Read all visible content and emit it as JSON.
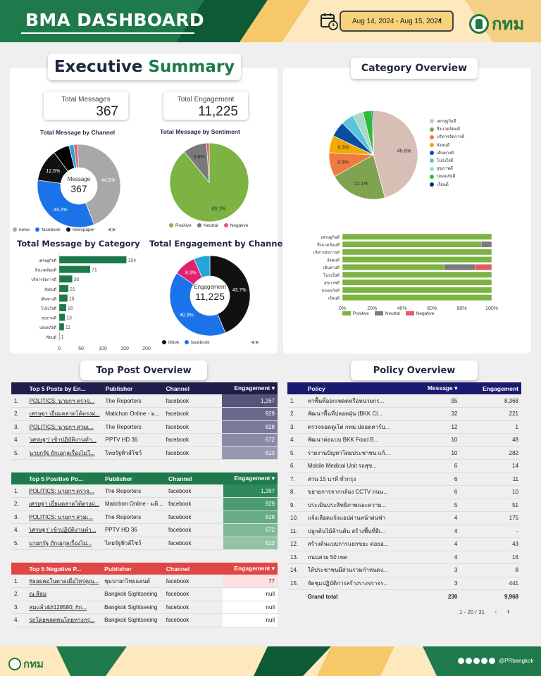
{
  "header": {
    "title": "BMA DASHBOARD",
    "date_range": "Aug 14, 2024 - Aug 15, 2024",
    "logo_text": "กทม"
  },
  "exec": {
    "title_a": "Executive",
    "title_b": "Summary",
    "total_messages_label": "Total Messages",
    "total_messages": "367",
    "total_engagement_label": "Total Engagement",
    "total_engagement": "11,225"
  },
  "charts": {
    "channel": {
      "title": "Total Message by Channel",
      "center_label": "Message",
      "center_value": "367",
      "slices": [
        {
          "name": "news",
          "value": 44.5,
          "label": "44.5%",
          "color": "#a8a8a8"
        },
        {
          "name": "facebook",
          "value": 33.2,
          "label": "33.2%",
          "color": "#1a73e8"
        },
        {
          "name": "newspaper",
          "value": 12.6,
          "label": "12.6%",
          "color": "#111111"
        },
        {
          "name": "",
          "value": 6.3,
          "label": "",
          "color": "#000000"
        },
        {
          "name": "",
          "value": 1.9,
          "label": "",
          "color": "#26a5d9"
        },
        {
          "name": "",
          "value": 1.5,
          "label": "",
          "color": "#e75a7c"
        }
      ],
      "legend": [
        "news",
        "facebook",
        "newspaper"
      ]
    },
    "sentiment": {
      "title": "Total Message by Sentiment",
      "slices": [
        {
          "name": "Positive",
          "value": 89.1,
          "label": "89.1%",
          "color": "#7cb342"
        },
        {
          "name": "Neutral",
          "value": 9.8,
          "label": "9.8%",
          "color": "#7a7a7a"
        },
        {
          "name": "Negative",
          "value": 1.1,
          "label": "",
          "color": "#e45b64"
        }
      ],
      "legend": [
        "Positive",
        "Neutral",
        "Negative"
      ]
    },
    "category_bar": {
      "title": "Total Message by Category",
      "categories": [
        "เศรษฐกิจดี",
        "สิ่งแวดล้อมดี",
        "บริหารจัดการดี",
        "สังคมดี",
        "เดินทางดี",
        "โปร่งใสดี",
        "สุขภาพดี",
        "ปลอดภัยดี",
        "เรียนดี"
      ],
      "values": [
        154,
        71,
        30,
        21,
        19,
        16,
        13,
        11,
        1
      ],
      "xlim": [
        0,
        200
      ],
      "ticks": [
        "0",
        "50",
        "100",
        "150",
        "200"
      ],
      "color": "#1e7a4a"
    },
    "engagement": {
      "title": "Total Engagement by Channel",
      "center_label": "Engagement",
      "center_value": "11,225",
      "slices": [
        {
          "name": "tiktok",
          "value": 43.7,
          "label": "43.7%",
          "color": "#111111"
        },
        {
          "name": "facebook",
          "value": 40.9,
          "label": "40.9%",
          "color": "#1a73e8"
        },
        {
          "name": "",
          "value": 8.9,
          "label": "8.9%",
          "color": "#e0216b"
        },
        {
          "name": "",
          "value": 6.5,
          "label": "",
          "color": "#26a5d9"
        }
      ],
      "legend": [
        "tiktok",
        "facebook"
      ]
    },
    "category_pie": {
      "title": "Category Overview",
      "slices": [
        {
          "name": "เศรษฐกิจดี",
          "value": 45.8,
          "label": "45.8%",
          "color": "#d7bfb5"
        },
        {
          "name": "สิ่งแวดล้อมดี",
          "value": 21.1,
          "label": "21.1%",
          "color": "#7fa34e"
        },
        {
          "name": "บริหารจัดการดี",
          "value": 8.9,
          "label": "8.9%",
          "color": "#f07b3f"
        },
        {
          "name": "สังคมดี",
          "value": 6.3,
          "label": "6.3%",
          "color": "#f2a900"
        },
        {
          "name": "เดินทางดี",
          "value": 5.7,
          "label": "",
          "color": "#0b4da2"
        },
        {
          "name": "โปร่งใสดี",
          "value": 4.6,
          "label": "",
          "color": "#5bc4d8"
        },
        {
          "name": "สุขภาพดี",
          "value": 3.8,
          "label": "",
          "color": "#a9d9c8"
        },
        {
          "name": "ปลอดภัยดี",
          "value": 3.3,
          "label": "",
          "color": "#2ebd3a"
        },
        {
          "name": "เรียนดี",
          "value": 0.5,
          "label": "",
          "color": "#0b2a6b"
        }
      ]
    },
    "stacked": {
      "categories": [
        "เศรษฐกิจดี",
        "สิ่งแวดล้อมดี",
        "บริหารจัดการดี",
        "สังคมดี",
        "เดินทางดี",
        "โปร่งใสดี",
        "สุขภาพดี",
        "ปลอดภัยดี",
        "เรียนดี"
      ],
      "positive": [
        100,
        93,
        100,
        100,
        68,
        100,
        100,
        100,
        100
      ],
      "neutral": [
        0,
        7,
        0,
        0,
        21,
        0,
        0,
        0,
        0
      ],
      "negative": [
        0,
        0,
        0,
        0,
        11,
        0,
        0,
        0,
        0
      ],
      "ticks": [
        "0%",
        "20%",
        "40%",
        "60%",
        "80%",
        "100%"
      ],
      "legend": [
        "Positive",
        "Neutral",
        "Negative"
      ],
      "colors": [
        "#7cb342",
        "#7a7a7a",
        "#e45b64"
      ]
    }
  },
  "top_post": {
    "title": "Top Post Overview",
    "t1": {
      "headers": [
        "Top 5 Posts by En...",
        "Publisher",
        "Channel",
        "Engagement"
      ],
      "rows": [
        [
          "1.",
          "POLITICS: นายกฯ ตรวจ...",
          "The Reporters",
          "facebook",
          "1,267"
        ],
        [
          "2.",
          "เศรษฐา เยี่ยมตลาดโต้ตรงฝ...",
          "Matichon Online - ม...",
          "facebook",
          "929"
        ],
        [
          "3.",
          "POLITICS: นายกฯ สวมเ...",
          "The Reporters",
          "facebook",
          "828"
        ],
        [
          "4.",
          "'เศรษฐา' เข้าปฏิบัติงานทำ...",
          "PPTV HD 36",
          "facebook",
          "672"
        ],
        [
          "5.",
          "นายกรัฐ ถักเอกุลเรื่องไม่ใ...",
          "ไทยรัฐพิวส์โชว์",
          "facebook",
          "613"
        ]
      ]
    },
    "t2": {
      "headers": [
        "Top 5 Positive Po...",
        "Publisher",
        "Channel",
        "Engagement"
      ],
      "rows": [
        [
          "1.",
          "POLITICS: นายกฯ ตรวจ...",
          "The Reporters",
          "facebook",
          "1,267"
        ],
        [
          "2.",
          "เศรษฐา เยี่ยมตลาดโต้ตรงฝ...",
          "Matichon Online - มติ...",
          "facebook",
          "929"
        ],
        [
          "3.",
          "POLITICS: นายกฯ สวมเ...",
          "The Reporters",
          "facebook",
          "828"
        ],
        [
          "4.",
          "'เศรษฐา' เข้าปฏิบัติงานทำ...",
          "PPTV HD 36",
          "facebook",
          "672"
        ],
        [
          "5.",
          "นายกรัฐ ถักเอกุลเรื่องไม่...",
          "ไทยรัฐพิวส์โชว์",
          "facebook",
          "613"
        ]
      ]
    },
    "t3": {
      "headers": [
        "Top 5 Negative P...",
        "Publisher",
        "Channel",
        "Engagement"
      ],
      "rows": [
        [
          "1.",
          "#ลอยคอในตาลเมื่อไหร่คุณ...",
          "ชุมนายกไทยแลนด์",
          "facebook",
          "77"
        ],
        [
          "2.",
          "ณ สีลม",
          "Bangkok Sightseeing",
          "facebook",
          "null"
        ],
        [
          "3.",
          "สมแล้ว&#128580; #ถ...",
          "Bangkok Sightseeing",
          "facebook",
          "null"
        ],
        [
          "4.",
          "รถโดยพลตหนโดยทางกรุ...",
          "Bangkok Sightseeing",
          "facebook",
          "null"
        ]
      ]
    }
  },
  "policy": {
    "title": "Policy Overview",
    "headers": [
      "Policy",
      "Message",
      "Engagement"
    ],
    "rows": [
      [
        "1.",
        "หาพื้นที่ออกเพลตหรือหน่วยกร...",
        "95",
        "8,368"
      ],
      [
        "2.",
        "พัฒนาพื้นที่ปลอดฝุ่น (BKK Cl...",
        "32",
        "221"
      ],
      [
        "3.",
        "ตรวจจอดดูเโต่ กทม.ปลอดคาร์บ...",
        "12",
        "1"
      ],
      [
        "4.",
        "พัฒนาต่อแบบ BKK Food B...",
        "10",
        "48"
      ],
      [
        "5.",
        "รายงานปัญหาโดยประชาชน แก้...",
        "10",
        "282"
      ],
      [
        "6.",
        "Mobile Medical Unit รถสุข...",
        "6",
        "14"
      ],
      [
        "7.",
        "สวน 15 นาที ทั่วกรุง",
        "6",
        "11"
      ],
      [
        "8.",
        "ขยายการจากกล้อง CCTV ถนน...",
        "6",
        "10"
      ],
      [
        "9.",
        "ประเมินประสิทธิภาพและความ...",
        "5",
        "51"
      ],
      [
        "10.",
        "แจ้งเลือดแจ้งแอปผ่านหน้าฝนฟ่า",
        "4",
        "175"
      ],
      [
        "11.",
        "ปลูกต้นไม้ล้านต้น สร้างพื้นที่สีเ...",
        "4",
        "-"
      ],
      [
        "12.",
        "สร้างต้นแบบการแยกขยะ ต่อยอ...",
        "4",
        "43"
      ],
      [
        "13.",
        "ถนนสวย 50 เขต",
        "4",
        "16"
      ],
      [
        "14.",
        "ให้ประชาชนมีส่วนร่วมกำหนดง...",
        "3",
        "8"
      ],
      [
        "15.",
        "จัดชุมปฏิบัติการสร้างรางจราจร...",
        "3",
        "441"
      ]
    ],
    "grand_total_label": "Grand total",
    "grand_total_message": "230",
    "grand_total_engagement": "9,968",
    "pagination": "1 - 20 / 31"
  },
  "footer": {
    "logo_text": "กทม",
    "handle": "@PRbangkok"
  }
}
